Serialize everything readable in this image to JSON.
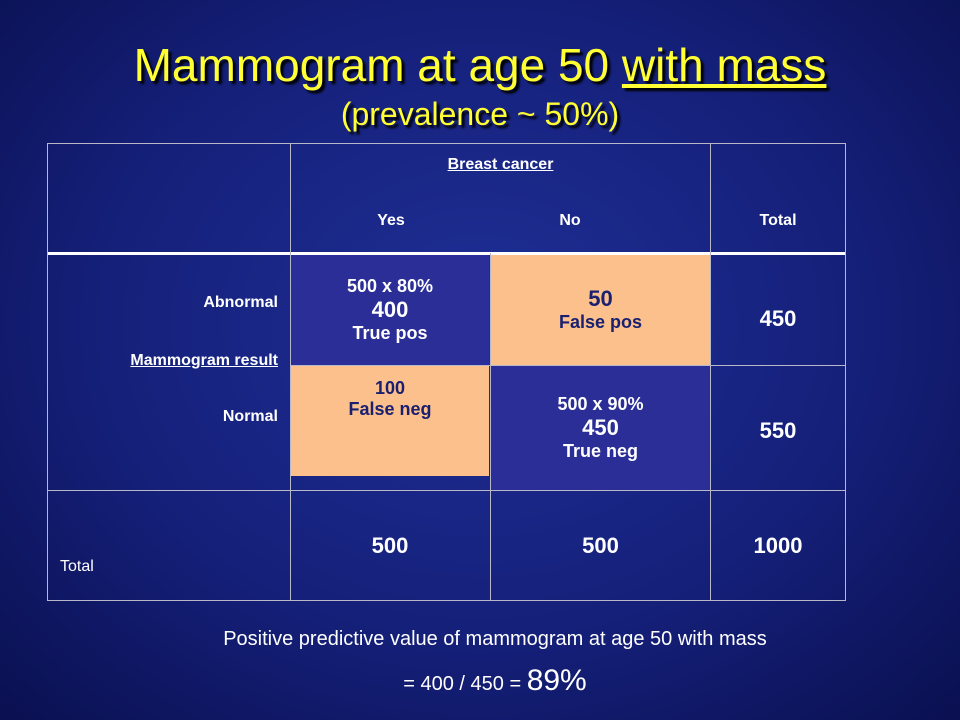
{
  "title": {
    "main": "Mammogram at age 50 ",
    "underlined": "with mass",
    "subtitle": "(prevalence ~ 50%)"
  },
  "table": {
    "header": {
      "group": "Breast cancer",
      "yes": "Yes",
      "no": "No",
      "total": "Total"
    },
    "row_labels": {
      "abnormal": "Abnormal",
      "axis": "Mammogram result",
      "normal": "Normal",
      "total": "Total"
    },
    "abnormal": {
      "yes": [
        "500 x 80%",
        "400",
        "True pos"
      ],
      "no": [
        "50",
        "False pos"
      ],
      "total": "450"
    },
    "normal": {
      "yes": [
        "100",
        "False neg"
      ],
      "no": [
        "500 x 90%",
        "450",
        "True neg"
      ],
      "total": "550"
    },
    "totals": {
      "yes": "500",
      "no": "500",
      "total": "1000"
    }
  },
  "footer": {
    "line1": "Positive predictive value of mammogram at age 50 with mass",
    "line2": "= 400 / 450 = ",
    "result": "89%"
  }
}
